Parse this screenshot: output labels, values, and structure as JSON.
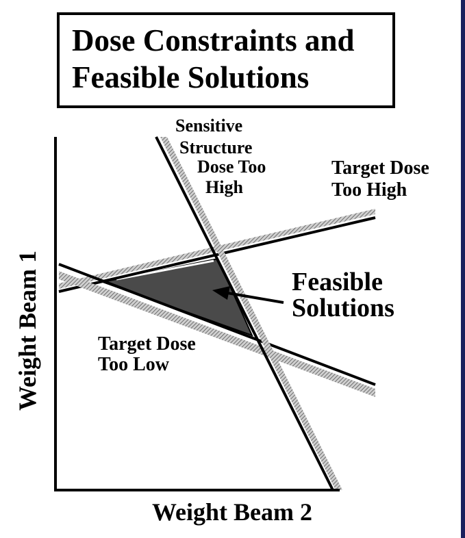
{
  "title": "Dose Constraints and\nFeasible Solutions",
  "axes": {
    "x_label": "Weight Beam 2",
    "y_label": "Weight Beam 1"
  },
  "regions": {
    "sensitive_structure": [
      "Sensitive",
      "Structure",
      "Dose Too",
      "High"
    ],
    "target_high": [
      "Target Dose",
      "Too High"
    ],
    "target_low": [
      "Target Dose",
      "Too Low"
    ],
    "feasible": [
      "Feasible",
      "Solutions"
    ]
  },
  "colors": {
    "feasible_fill": "#4a4a4a",
    "hatch": "#8a8a8a",
    "frame": "#1a1f5c"
  }
}
